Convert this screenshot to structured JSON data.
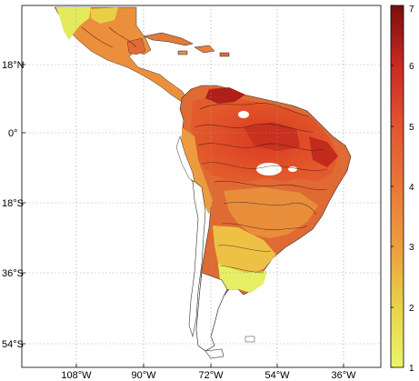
{
  "map": {
    "lon_ticks": [
      "108°W",
      "90°W",
      "72°W",
      "54°W",
      "36°W"
    ],
    "lon_values": [
      -108,
      -90,
      -72,
      -54,
      -36
    ],
    "lat_ticks": [
      "18°N",
      "0°",
      "18°S",
      "36°S",
      "54°S"
    ],
    "lat_values": [
      18,
      0,
      -18,
      -36,
      -54
    ],
    "extent": {
      "lon": [
        -118,
        -29
      ],
      "lat": [
        -62,
        32
      ]
    },
    "grid": true,
    "grid_style": "dotted",
    "coastline_color": "#000000"
  },
  "colorbar": {
    "ticks": [
      "1",
      "2",
      "3",
      "4",
      "5",
      "6",
      "7"
    ],
    "tick_values": [
      1,
      2,
      3,
      4,
      5,
      6,
      7
    ],
    "range": [
      1,
      7
    ],
    "colors": [
      "#e9f56a",
      "#e8d24a",
      "#ec9e3f",
      "#e9783a",
      "#e3542f",
      "#cb2a22",
      "#7a0f0f"
    ],
    "placement": "right"
  }
}
